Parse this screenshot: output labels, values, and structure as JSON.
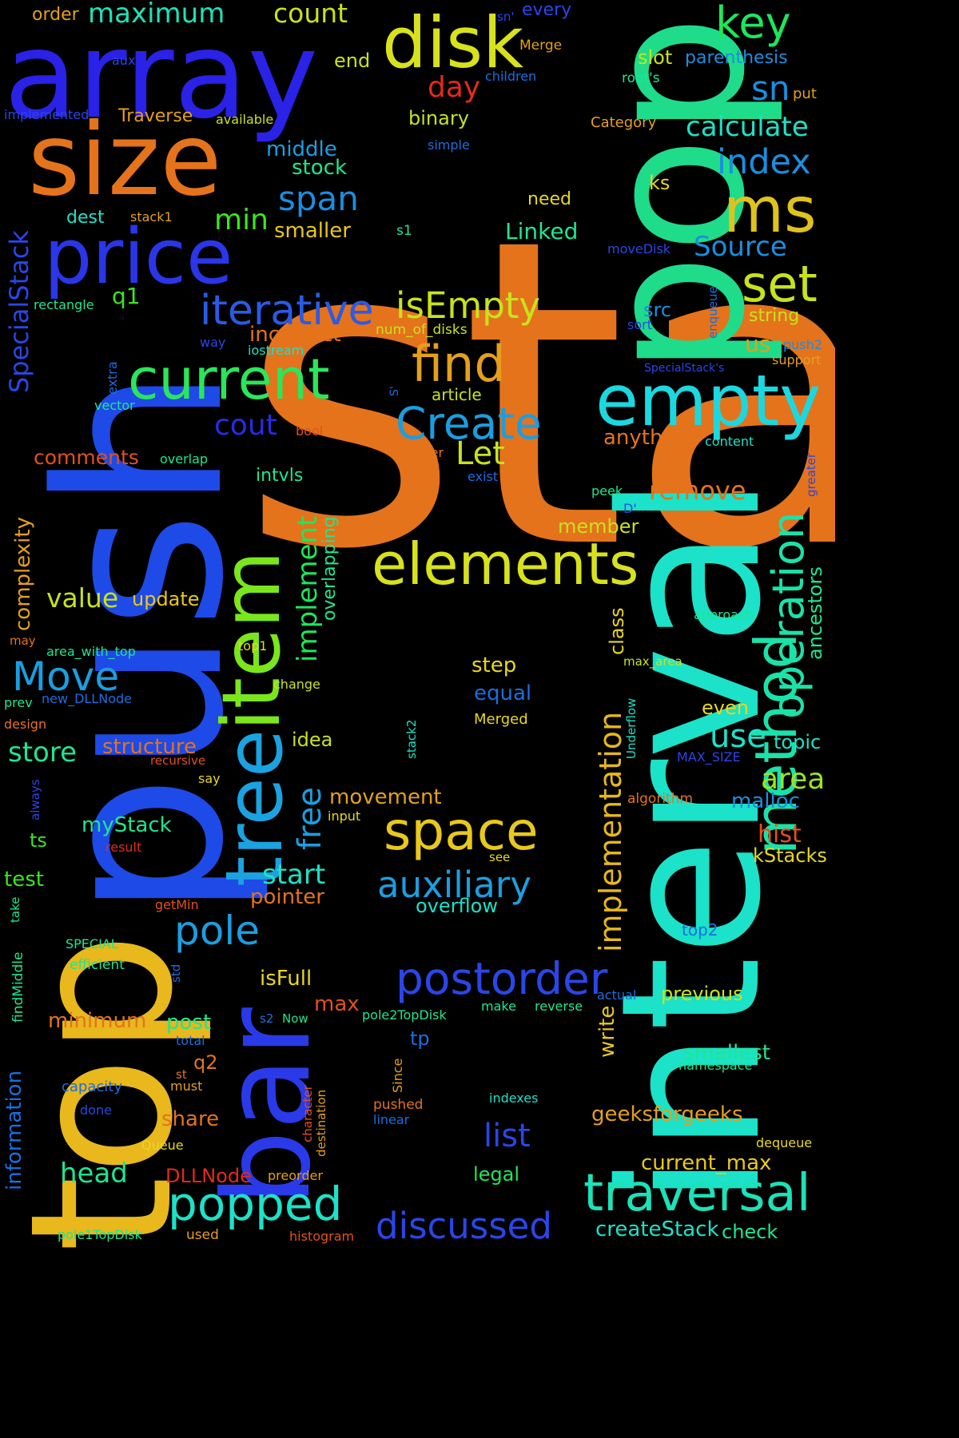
{
  "words": [
    {
      "text": "stack",
      "color": "#e4731c"
    },
    {
      "text": "interval",
      "color": "#1be2c8"
    },
    {
      "text": "top",
      "color": "#e8b81c"
    },
    {
      "text": "push",
      "color": "#1e4ae8"
    },
    {
      "text": "pop",
      "color": "#1edc8a"
    },
    {
      "text": "array",
      "color": "#2a22e6"
    },
    {
      "text": "size",
      "color": "#e4731c"
    },
    {
      "text": "price",
      "color": "#2a36e8"
    },
    {
      "text": "disk",
      "color": "#d8e21c"
    },
    {
      "text": "bar",
      "color": "#2a3ae8"
    },
    {
      "text": "tree",
      "color": "#1ba2e0"
    },
    {
      "text": "item",
      "color": "#7ae61c"
    },
    {
      "text": "empty",
      "color": "#1bd8e0"
    },
    {
      "text": "elements",
      "color": "#d8e21c"
    },
    {
      "text": "method",
      "color": "#1be2a8"
    },
    {
      "text": "ms",
      "color": "#e0c21c"
    },
    {
      "text": "current",
      "color": "#2ae65a"
    },
    {
      "text": "iterative",
      "color": "#2a5ae8"
    },
    {
      "text": "find",
      "color": "#e4a01c"
    },
    {
      "text": "Create",
      "color": "#1b9ee0"
    },
    {
      "text": "space",
      "color": "#e8c81c"
    },
    {
      "text": "postorder",
      "color": "#2a46e8"
    },
    {
      "text": "traversal",
      "color": "#1be2b8"
    },
    {
      "text": "popped",
      "color": "#1be2c8"
    },
    {
      "text": "operation",
      "color": "#1be2a8"
    },
    {
      "text": "set",
      "color": "#c8e21c"
    },
    {
      "text": "isEmpty",
      "color": "#c8e21c"
    },
    {
      "text": "key",
      "color": "#1ee65a"
    },
    {
      "text": "index",
      "color": "#1b8ee0"
    },
    {
      "text": "span",
      "color": "#1b8ee0"
    },
    {
      "text": "Move",
      "color": "#1b9ee0"
    },
    {
      "text": "pole",
      "color": "#1b9ee0"
    },
    {
      "text": "auxiliary",
      "color": "#1b9ee0"
    },
    {
      "text": "discussed",
      "color": "#2a46e8"
    },
    {
      "text": "implementation",
      "color": "#e8b81c"
    },
    {
      "text": "maximum",
      "color": "#1be2b8"
    },
    {
      "text": "count",
      "color": "#c8e21c"
    },
    {
      "text": "sn",
      "color": "#1b8ee0"
    },
    {
      "text": "calculate",
      "color": "#1be2c8"
    },
    {
      "text": "Source",
      "color": "#1b8ee0"
    },
    {
      "text": "SpecialStack",
      "color": "#2a46e8"
    },
    {
      "text": "area",
      "color": "#9ae61c"
    },
    {
      "text": "use",
      "color": "#1be2c8"
    },
    {
      "text": "head",
      "color": "#1ee690"
    },
    {
      "text": "store",
      "color": "#1ee690"
    },
    {
      "text": "list",
      "color": "#2a46e8"
    },
    {
      "text": "free",
      "color": "#1b9ee0"
    },
    {
      "text": "start",
      "color": "#1be2c8"
    },
    {
      "text": "implement",
      "color": "#1ee65a"
    },
    {
      "text": "day",
      "color": "#e22a1c"
    },
    {
      "text": "Let",
      "color": "#c8e21c"
    },
    {
      "text": "cout",
      "color": "#2a2ae6"
    },
    {
      "text": "value",
      "color": "#c8e21c"
    },
    {
      "text": "min",
      "color": "#3ae61c"
    },
    {
      "text": "remove",
      "color": "#e4731c"
    },
    {
      "text": "structure",
      "color": "#e4731c"
    },
    {
      "text": "movement",
      "color": "#e4a01c"
    },
    {
      "text": "information",
      "color": "#1b6ee0"
    },
    {
      "text": "complexity",
      "color": "#e4a01c"
    },
    {
      "text": "overlapping",
      "color": "#1ee690"
    },
    {
      "text": "ancestors",
      "color": "#1ee690"
    },
    {
      "text": "geeksforgeeks",
      "color": "#e4a01c"
    },
    {
      "text": "createStack",
      "color": "#1be2c8"
    },
    {
      "text": "current_max",
      "color": "#e8c81c"
    },
    {
      "text": "DLLNode",
      "color": "#e22a1c"
    },
    {
      "text": "minimum",
      "color": "#e4731c"
    },
    {
      "text": "stock",
      "color": "#1ee690"
    },
    {
      "text": "middle",
      "color": "#1b9ee0"
    },
    {
      "text": "smaller",
      "color": "#e8c81c"
    },
    {
      "text": "Linked",
      "color": "#1ee690"
    },
    {
      "text": "incorrect",
      "color": "#e4731c"
    },
    {
      "text": "anything",
      "color": "#e4731c"
    },
    {
      "text": "comments",
      "color": "#e4501c"
    },
    {
      "text": "update",
      "color": "#e8c81c"
    },
    {
      "text": "pointer",
      "color": "#e4731c"
    },
    {
      "text": "overflow",
      "color": "#1be2c8"
    },
    {
      "text": "isFull",
      "color": "#e8d81c"
    },
    {
      "text": "max",
      "color": "#e4501c"
    },
    {
      "text": "post",
      "color": "#1ee690"
    },
    {
      "text": "share",
      "color": "#e4731c"
    },
    {
      "text": "write",
      "color": "#e8c81c"
    },
    {
      "text": "smallest",
      "color": "#1ee690"
    },
    {
      "text": "previous",
      "color": "#c8e21c"
    },
    {
      "text": "hist",
      "color": "#e4501c"
    },
    {
      "text": "kStacks",
      "color": "#e8d81c"
    },
    {
      "text": "malloc",
      "color": "#1b8ee0"
    },
    {
      "text": "topic",
      "color": "#1be2c8"
    },
    {
      "text": "even",
      "color": "#e8d81c"
    },
    {
      "text": "equal",
      "color": "#1b6ee0"
    },
    {
      "text": "step",
      "color": "#e8d81c"
    },
    {
      "text": "class",
      "color": "#e8d81c"
    },
    {
      "text": "member",
      "color": "#c8e21c"
    },
    {
      "text": "legal",
      "color": "#1ee65a"
    },
    {
      "text": "check",
      "color": "#1ee690"
    },
    {
      "text": "mystack",
      "label": "myStack",
      "color": "#1ee690"
    },
    {
      "text": "test",
      "color": "#3ae61c"
    },
    {
      "text": "ts",
      "color": "#3ae61c"
    },
    {
      "text": "tp",
      "color": "#1b6ee0"
    },
    {
      "text": "idea",
      "color": "#c8e21c"
    },
    {
      "text": "q1",
      "color": "#3ae61c"
    },
    {
      "text": "q2",
      "color": "#e4731c"
    },
    {
      "text": "binary",
      "color": "#c8e21c"
    },
    {
      "text": "end",
      "color": "#c8e21c"
    },
    {
      "text": "slot",
      "color": "#c8e21c"
    },
    {
      "text": "parenthesis",
      "color": "#1b8ee0"
    },
    {
      "text": "order",
      "color": "#e4a01c"
    },
    {
      "text": "Traverse",
      "color": "#e4a01c"
    },
    {
      "text": "dest",
      "color": "#1be2c8"
    },
    {
      "text": "ks",
      "color": "#e8d81c"
    },
    {
      "text": "need",
      "color": "#e8d81c"
    },
    {
      "text": "src",
      "color": "#1b8ee0"
    },
    {
      "text": "us",
      "color": "#e4a01c"
    },
    {
      "text": "string",
      "color": "#c8e21c"
    },
    {
      "text": "article",
      "color": "#c8e21c"
    },
    {
      "text": "intvls",
      "color": "#1ee690"
    },
    {
      "text": "top2",
      "color": "#1b6ee0"
    },
    {
      "text": "push2",
      "color": "#1b8ee0"
    },
    {
      "text": "every",
      "color": "#2a46e8"
    },
    {
      "text": "Merge",
      "color": "#e4a01c"
    },
    {
      "text": "aux",
      "color": "#2a46e8"
    },
    {
      "text": "children",
      "color": "#1b6ee0"
    },
    {
      "text": "root's",
      "color": "#1ee690"
    },
    {
      "text": "put",
      "color": "#e4a01c"
    },
    {
      "text": "implemented",
      "color": "#2a46e8"
    },
    {
      "text": "available",
      "color": "#c8e21c"
    },
    {
      "text": "Category",
      "color": "#e4a01c"
    },
    {
      "text": "simple",
      "color": "#1b6ee0"
    },
    {
      "text": "stack1",
      "color": "#e4a01c"
    },
    {
      "text": "s1",
      "color": "#1ee690"
    },
    {
      "text": "moveDisk",
      "color": "#2a46e8"
    },
    {
      "text": "rectangle",
      "color": "#1ee690"
    },
    {
      "text": "num_of_disks",
      "color": "#c8e21c"
    },
    {
      "text": "iostream",
      "color": "#1be2c8"
    },
    {
      "text": "way",
      "color": "#2a46e8"
    },
    {
      "text": "sort",
      "color": "#2a46e8"
    },
    {
      "text": "enqueue",
      "color": "#1b6ee0"
    },
    {
      "text": "SpecialStack's",
      "color": "#2a46e8"
    },
    {
      "text": "support",
      "color": "#e4a01c"
    },
    {
      "text": "extra",
      "color": "#1b6ee0"
    },
    {
      "text": "vector",
      "color": "#1ee690"
    },
    {
      "text": "bool",
      "color": "#e4501c"
    },
    {
      "text": "content",
      "color": "#1be2c8"
    },
    {
      "text": "consider",
      "color": "#e4731c"
    },
    {
      "text": "exist",
      "color": "#1b6ee0"
    },
    {
      "text": "overlap",
      "color": "#1ee690"
    },
    {
      "text": "greater",
      "color": "#2a46e8"
    },
    {
      "text": "peek",
      "color": "#1ee690"
    },
    {
      "text": "D'",
      "color": "#2a46e8"
    },
    {
      "text": "approach",
      "color": "#1ee690"
    },
    {
      "text": "may",
      "color": "#e4731c"
    },
    {
      "text": "area_with_top",
      "color": "#1ee690"
    },
    {
      "text": "top1",
      "color": "#e8d81c"
    },
    {
      "text": "max_area",
      "color": "#c8e21c"
    },
    {
      "text": "change",
      "color": "#c8e21c"
    },
    {
      "text": "prev",
      "color": "#1ee690"
    },
    {
      "text": "new_DLLNode",
      "color": "#1b6ee0"
    },
    {
      "text": "Underflow",
      "color": "#1be2c8"
    },
    {
      "text": "Merged",
      "color": "#e8d81c"
    },
    {
      "text": "design",
      "color": "#e4731c"
    },
    {
      "text": "recursive",
      "color": "#e4501c"
    },
    {
      "text": "stack2",
      "color": "#1be2c8"
    },
    {
      "text": "MAX_SIZE",
      "color": "#2a46e8"
    },
    {
      "text": "say",
      "color": "#e8d81c"
    },
    {
      "text": "algorithm",
      "color": "#e4731c"
    },
    {
      "text": "always",
      "color": "#2a46e8"
    },
    {
      "text": "input",
      "color": "#e8d81c"
    },
    {
      "text": "result",
      "color": "#e22a1c"
    },
    {
      "text": "see",
      "color": "#e8d81c"
    },
    {
      "text": "take",
      "color": "#1ee690"
    },
    {
      "text": "getMin",
      "color": "#e4501c"
    },
    {
      "text": "SPECIAL",
      "color": "#1ee690"
    },
    {
      "text": "efficient",
      "color": "#1ee690"
    },
    {
      "text": "std",
      "color": "#1b6ee0"
    },
    {
      "text": "findMiddle",
      "color": "#1ee690"
    },
    {
      "text": "s2",
      "color": "#1b6ee0"
    },
    {
      "text": "Now",
      "color": "#1ee690"
    },
    {
      "text": "pole2TopDisk",
      "color": "#1ee690"
    },
    {
      "text": "make",
      "color": "#1ee690"
    },
    {
      "text": "reverse",
      "color": "#1ee690"
    },
    {
      "text": "actual",
      "color": "#1b6ee0"
    },
    {
      "text": "total",
      "color": "#1b6ee0"
    },
    {
      "text": "st",
      "color": "#e4731c"
    },
    {
      "text": "must",
      "color": "#e4a01c"
    },
    {
      "text": "namespace",
      "color": "#1ee690"
    },
    {
      "text": "capacity",
      "color": "#1b6ee0"
    },
    {
      "text": "done",
      "color": "#2a46e8"
    },
    {
      "text": "Since",
      "color": "#e4a01c"
    },
    {
      "text": "character",
      "color": "#e4501c"
    },
    {
      "text": "destination",
      "color": "#e4a01c"
    },
    {
      "text": "pushed",
      "color": "#e4731c"
    },
    {
      "text": "linear",
      "color": "#1b6ee0"
    },
    {
      "text": "indexes",
      "color": "#1be2c8"
    },
    {
      "text": "Queue",
      "color": "#e8d81c"
    },
    {
      "text": "dequeue",
      "color": "#e8d81c"
    },
    {
      "text": "preorder",
      "color": "#e4a01c"
    },
    {
      "text": "used",
      "color": "#e4a01c"
    },
    {
      "text": "pole1TopDisk",
      "color": "#1ee690"
    },
    {
      "text": "histogram",
      "color": "#e4501c"
    },
    {
      "text": "sn'",
      "color": "#2a46e8"
    },
    {
      "text": "S'",
      "color": "#1b6ee0"
    }
  ]
}
